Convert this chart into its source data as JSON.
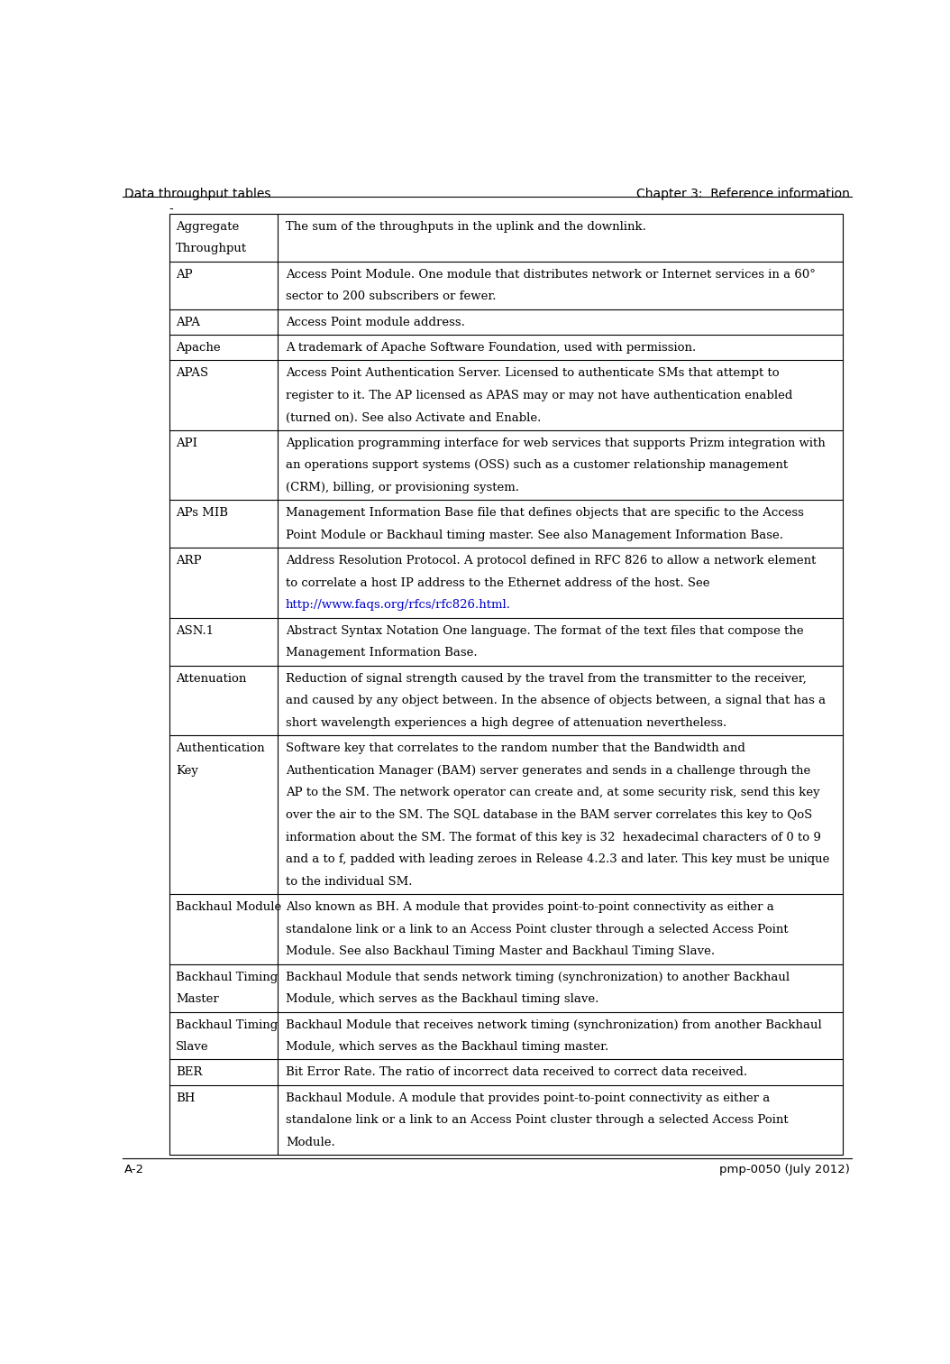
{
  "header_left": "Data throughput tables",
  "header_right": "Chapter 3:  Reference information",
  "footer_left": "A-2",
  "footer_right": "pmp-0050 (July 2012)",
  "page_label": "-",
  "table_rows": [
    {
      "term": "Aggregate\nThroughput",
      "definition": "The sum of the throughputs in the uplink and the downlink.",
      "def_lines": [
        "The sum of the throughputs in the uplink and the downlink."
      ],
      "n_def_lines": 1,
      "n_term_lines": 2
    },
    {
      "term": "AP",
      "definition": "Access Point Module. One module that distributes network or Internet services in a 60° sector to 200 subscribers or fewer.",
      "def_lines": [
        "Access Point Module. One module that distributes network or Internet services in a 60°",
        "sector to 200 subscribers or fewer."
      ],
      "n_def_lines": 2,
      "n_term_lines": 1
    },
    {
      "term": "APA",
      "definition": "Access Point module address.",
      "def_lines": [
        "Access Point module address."
      ],
      "n_def_lines": 1,
      "n_term_lines": 1
    },
    {
      "term": "Apache",
      "definition": "A trademark of Apache Software Foundation, used with permission.",
      "def_lines": [
        "A trademark of Apache Software Foundation, used with permission."
      ],
      "n_def_lines": 1,
      "n_term_lines": 1
    },
    {
      "term": "APAS",
      "definition": "Access Point Authentication Server. Licensed to authenticate SMs that attempt to register to it. The AP licensed as APAS may or may not have authentication enabled (turned on). See also Activate and Enable.",
      "def_lines": [
        "Access Point Authentication Server. Licensed to authenticate SMs that attempt to",
        "register to it. The AP licensed as APAS may or may not have authentication enabled",
        "(turned on). See also Activate and Enable."
      ],
      "n_def_lines": 3,
      "n_term_lines": 1
    },
    {
      "term": "API",
      "definition": "Application programming interface for web services that supports Prizm integration with an operations support systems (OSS) such as a customer relationship management (CRM), billing, or provisioning system.",
      "def_lines": [
        "Application programming interface for web services that supports Prizm integration with",
        "an operations support systems (OSS) such as a customer relationship management",
        "(CRM), billing, or provisioning system."
      ],
      "n_def_lines": 3,
      "n_term_lines": 1
    },
    {
      "term": "APs MIB",
      "definition": "Management Information Base file that defines objects that are specific to the Access Point Module or Backhaul timing master. See also Management Information Base.",
      "def_lines": [
        "Management Information Base file that defines objects that are specific to the Access",
        "Point Module or Backhaul timing master. See also Management Information Base."
      ],
      "n_def_lines": 2,
      "n_term_lines": 1
    },
    {
      "term": "ARP",
      "definition": "Address Resolution Protocol. A protocol defined in RFC 826 to allow a network element to correlate a host IP address to the Ethernet address of the host. See http://www.faqs.org/rfcs/rfc826.html.",
      "def_lines": [
        "Address Resolution Protocol. A protocol defined in RFC 826 to allow a network element",
        "to correlate a host IP address to the Ethernet address of the host. See",
        "URL:http://www.faqs.org/rfcs/rfc826.html."
      ],
      "n_def_lines": 3,
      "n_term_lines": 1
    },
    {
      "term": "ASN.1",
      "definition": "Abstract Syntax Notation One language. The format of the text files that compose the Management Information Base.",
      "def_lines": [
        "Abstract Syntax Notation One language. The format of the text files that compose the",
        "Management Information Base."
      ],
      "n_def_lines": 2,
      "n_term_lines": 1
    },
    {
      "term": "Attenuation",
      "definition": "Reduction of signal strength caused by the travel from the transmitter to the receiver, and caused by any object between. In the absence of objects between, a signal that has a short wavelength experiences a high degree of attenuation nevertheless.",
      "def_lines": [
        "Reduction of signal strength caused by the travel from the transmitter to the receiver,",
        "and caused by any object between. In the absence of objects between, a signal that has a",
        "short wavelength experiences a high degree of attenuation nevertheless."
      ],
      "n_def_lines": 3,
      "n_term_lines": 1
    },
    {
      "term": "Authentication\nKey",
      "definition": "Software key that correlates to the random number that the Bandwidth and Authentication Manager (BAM) server generates and sends in a challenge through the AP to the SM. The network operator can create and, at some security risk, send this key over the air to the SM. The SQL database in the BAM server correlates this key to QoS information about the SM. The format of this key is 32  hexadecimal characters of 0 to 9 and a to f, padded with leading zeroes in Release 4.2.3 and later. This key must be unique to the individual SM.",
      "def_lines": [
        "Software key that correlates to the random number that the Bandwidth and",
        "Authentication Manager (BAM) server generates and sends in a challenge through the",
        "AP to the SM. The network operator can create and, at some security risk, send this key",
        "over the air to the SM. The SQL database in the BAM server correlates this key to QoS",
        "information about the SM. The format of this key is 32  hexadecimal characters of 0 to 9",
        "and a to f, padded with leading zeroes in Release 4.2.3 and later. This key must be unique",
        "to the individual SM."
      ],
      "n_def_lines": 7,
      "n_term_lines": 2
    },
    {
      "term": "Backhaul Module",
      "definition": "Also known as BH. A module that provides point-to-point connectivity as either a standalone link or a link to an Access Point cluster through a selected Access Point Module. See also Backhaul Timing Master and Backhaul Timing Slave.",
      "def_lines": [
        "Also known as BH. A module that provides point-to-point connectivity as either a",
        "standalone link or a link to an Access Point cluster through a selected Access Point",
        "Module. See also Backhaul Timing Master and Backhaul Timing Slave."
      ],
      "n_def_lines": 3,
      "n_term_lines": 1
    },
    {
      "term": "Backhaul Timing\nMaster",
      "definition": "Backhaul Module that sends network timing (synchronization) to another Backhaul Module, which serves as the Backhaul timing slave.",
      "def_lines": [
        "Backhaul Module that sends network timing (synchronization) to another Backhaul",
        "Module, which serves as the Backhaul timing slave."
      ],
      "n_def_lines": 2,
      "n_term_lines": 2
    },
    {
      "term": "Backhaul Timing\nSlave",
      "definition": "Backhaul Module that receives network timing (synchronization) from another Backhaul Module, which serves as the Backhaul timing master.",
      "def_lines": [
        "Backhaul Module that receives network timing (synchronization) from another Backhaul",
        "Module, which serves as the Backhaul timing master."
      ],
      "n_def_lines": 2,
      "n_term_lines": 2
    },
    {
      "term": "BER",
      "definition": "Bit Error Rate. The ratio of incorrect data received to correct data received.",
      "def_lines": [
        "Bit Error Rate. The ratio of incorrect data received to correct data received."
      ],
      "n_def_lines": 1,
      "n_term_lines": 1
    },
    {
      "term": "BH",
      "definition": "Backhaul Module. A module that provides point-to-point connectivity as either a standalone link or a link to an Access Point cluster through a selected Access Point Module.",
      "def_lines": [
        "Backhaul Module. A module that provides point-to-point connectivity as either a",
        "standalone link or a link to an Access Point cluster through a selected Access Point",
        "Module."
      ],
      "n_def_lines": 3,
      "n_term_lines": 1
    }
  ],
  "bg_color": "#ffffff",
  "text_color": "#000000",
  "header_fontsize": 10.0,
  "term_fontsize": 9.5,
  "def_fontsize": 9.5,
  "footer_fontsize": 9.5,
  "url_color": "#0000cc",
  "url_text": "http://www.faqs.org/rfcs/rfc826.html."
}
